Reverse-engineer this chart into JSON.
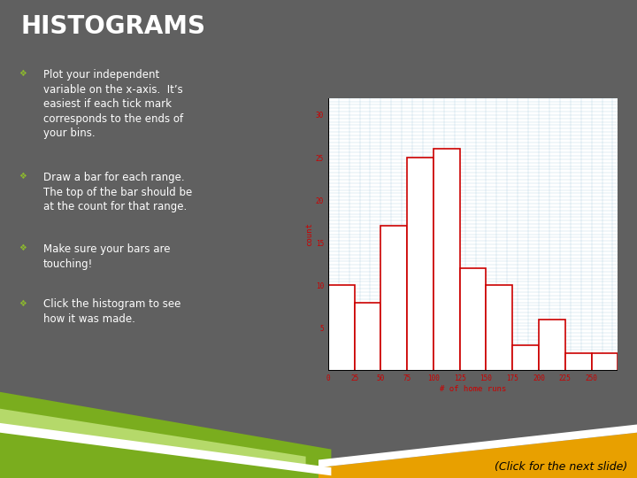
{
  "title": "HISTOGRAMS",
  "title_color": "#FFFFFF",
  "title_fontsize": 20,
  "bg_color": "#606060",
  "text_color": "#FFFFFF",
  "bullet_color": "#8DB92E",
  "bullet_points": [
    "Plot your independent\nvariable on the x-axis.  It’s\neasiest if each tick mark\ncorresponds to the ends of\nyour bins.",
    "Draw a bar for each range.\nThe top of the bar should be\nat the count for that range.",
    "Make sure your bars are\ntouching!",
    "Click the histogram to see\nhow it was made."
  ],
  "chart_bg": "#FFFFFF",
  "bar_color": "#CC0000",
  "hist_counts": [
    10,
    8,
    17,
    25,
    26,
    12,
    10,
    3,
    6,
    2,
    2
  ],
  "hist_x_labels": [
    "0",
    "25",
    "50",
    "75",
    "100",
    "125",
    "150",
    "175",
    "200",
    "225",
    "250"
  ],
  "hist_xlabel": "# of home runs",
  "hist_ylabel": "count",
  "green_color1": "#7AAD1E",
  "green_color2": "#B5D96A",
  "gold_color": "#E8A000",
  "click_text": "(Click for the next slide)",
  "click_text_color": "#000000",
  "click_text_fontsize": 9
}
